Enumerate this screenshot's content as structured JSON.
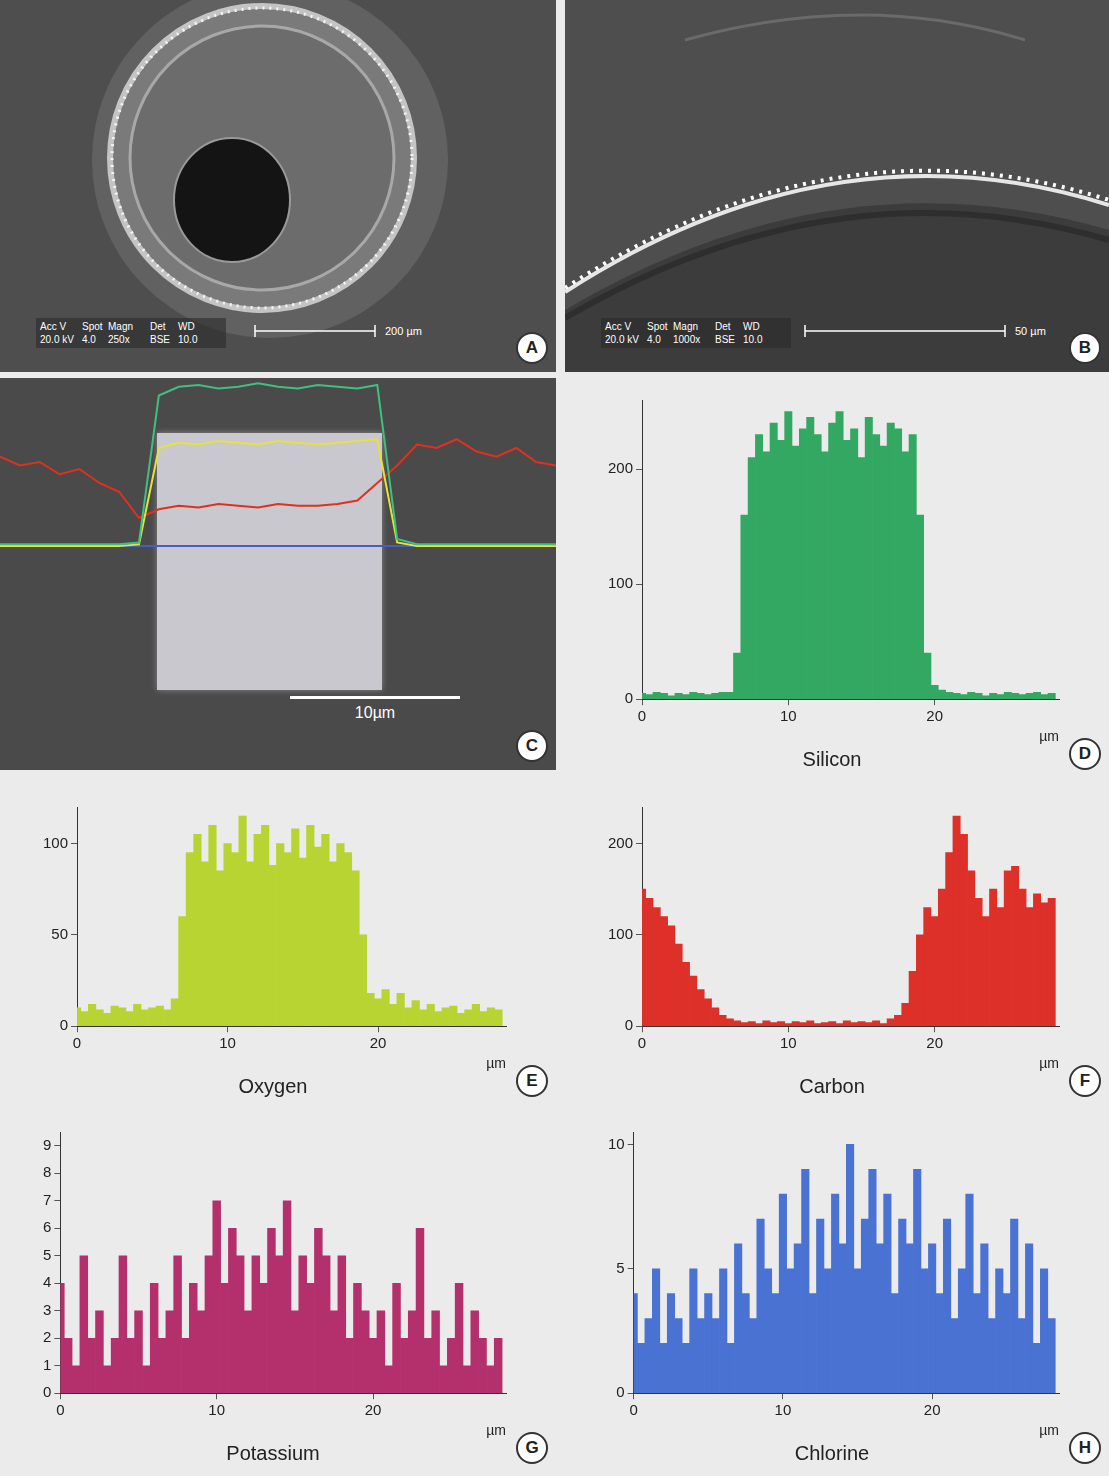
{
  "images": [
    {
      "panel": "A",
      "info": [
        {
          "label": "Acc V",
          "value": "20.0 kV"
        },
        {
          "label": "Spot",
          "value": "4.0"
        },
        {
          "label": "Magn",
          "value": "250x"
        },
        {
          "label": "Det",
          "value": "BSE"
        },
        {
          "label": "WD",
          "value": "10.0"
        }
      ],
      "scale_bar": "200 µm"
    },
    {
      "panel": "B",
      "info": [
        {
          "label": "Acc V",
          "value": "20.0 kV"
        },
        {
          "label": "Spot",
          "value": "4.0"
        },
        {
          "label": "Magn",
          "value": "1000x"
        },
        {
          "label": "Det",
          "value": "BSE"
        },
        {
          "label": "WD",
          "value": "10.0"
        }
      ],
      "scale_bar": "50 µm"
    }
  ],
  "chart_data": [
    {
      "panel": "C",
      "type": "line",
      "tick_labels": false,
      "grid": false,
      "scale_bar": "10µm",
      "x": [
        0,
        1,
        2,
        3,
        4,
        5,
        6,
        7,
        8,
        9,
        10,
        11,
        12,
        13,
        14,
        15,
        16,
        17,
        18,
        19,
        20,
        21,
        22,
        23,
        24,
        25,
        26,
        27,
        28
      ],
      "xlim": [
        0,
        28
      ],
      "ylim": [
        0,
        100
      ],
      "series": [
        {
          "color": "#3fbf80",
          "values": [
            5,
            5,
            5,
            5,
            5,
            5,
            5,
            6,
            90,
            95,
            96,
            94,
            95,
            97,
            95,
            94,
            96,
            95,
            94,
            96,
            8,
            5,
            5,
            5,
            5,
            5,
            5,
            5,
            5
          ]
        },
        {
          "color": "#e6e040",
          "values": [
            4,
            4,
            4,
            4,
            4,
            4,
            4,
            5,
            60,
            63,
            62,
            64,
            63,
            62,
            64,
            63,
            62,
            63,
            64,
            65,
            6,
            4,
            4,
            4,
            4,
            4,
            4,
            4,
            4
          ]
        },
        {
          "color": "#e03020",
          "values": [
            55,
            50,
            52,
            45,
            48,
            40,
            35,
            20,
            25,
            27,
            26,
            28,
            27,
            26,
            28,
            27,
            27,
            28,
            30,
            40,
            50,
            62,
            60,
            65,
            58,
            55,
            60,
            52,
            50
          ]
        },
        {
          "color": "#4060c8",
          "values": [
            4,
            4,
            4,
            4,
            4,
            4,
            4,
            4,
            4,
            4,
            4,
            4,
            4,
            4,
            4,
            4,
            4,
            4,
            4,
            4,
            4,
            4,
            4,
            4,
            4,
            4,
            4,
            4,
            4
          ]
        }
      ]
    },
    {
      "panel": "D",
      "type": "bar",
      "title": "Silicon",
      "x_label": "µm",
      "color": "#33a862",
      "grid": false,
      "x": [
        0,
        0.5,
        1,
        1.5,
        2,
        2.5,
        3,
        3.5,
        4,
        4.5,
        5,
        5.5,
        6,
        6.5,
        7,
        7.5,
        8,
        8.5,
        9,
        9.5,
        10,
        10.5,
        11,
        11.5,
        12,
        12.5,
        13,
        13.5,
        14,
        14.5,
        15,
        15.5,
        16,
        16.5,
        17,
        17.5,
        18,
        18.5,
        19,
        19.5,
        20,
        20.5,
        21,
        21.5,
        22,
        22.5,
        23,
        23.5,
        24,
        24.5,
        25,
        25.5,
        26,
        26.5,
        27,
        27.5,
        28
      ],
      "values": [
        5,
        4,
        6,
        5,
        3,
        5,
        4,
        6,
        5,
        4,
        5,
        6,
        6,
        40,
        160,
        210,
        230,
        215,
        240,
        225,
        250,
        220,
        235,
        245,
        230,
        215,
        240,
        250,
        225,
        235,
        210,
        245,
        230,
        220,
        240,
        235,
        215,
        230,
        160,
        40,
        12,
        8,
        6,
        5,
        4,
        6,
        5,
        3,
        5,
        4,
        6,
        5,
        4,
        5,
        6,
        4,
        5
      ],
      "xlim": [
        0,
        28.5
      ],
      "xticks": [
        0,
        10,
        20
      ],
      "ylim": [
        0,
        260
      ],
      "yticks": [
        0,
        100,
        200
      ]
    },
    {
      "panel": "E",
      "type": "bar",
      "title": "Oxygen",
      "x_label": "µm",
      "color": "#b8d433",
      "grid": false,
      "x": [
        0,
        0.5,
        1,
        1.5,
        2,
        2.5,
        3,
        3.5,
        4,
        4.5,
        5,
        5.5,
        6,
        6.5,
        7,
        7.5,
        8,
        8.5,
        9,
        9.5,
        10,
        10.5,
        11,
        11.5,
        12,
        12.5,
        13,
        13.5,
        14,
        14.5,
        15,
        15.5,
        16,
        16.5,
        17,
        17.5,
        18,
        18.5,
        19,
        19.5,
        20,
        20.5,
        21,
        21.5,
        22,
        22.5,
        23,
        23.5,
        24,
        24.5,
        25,
        25.5,
        26,
        26.5,
        27,
        27.5,
        28
      ],
      "values": [
        10,
        8,
        12,
        9,
        7,
        11,
        10,
        8,
        12,
        9,
        10,
        11,
        9,
        15,
        60,
        95,
        105,
        90,
        110,
        85,
        100,
        95,
        115,
        90,
        105,
        110,
        88,
        100,
        95,
        108,
        92,
        110,
        98,
        105,
        90,
        100,
        95,
        85,
        50,
        18,
        15,
        20,
        12,
        18,
        10,
        14,
        9,
        12,
        8,
        10,
        11,
        7,
        9,
        12,
        8,
        10,
        9
      ],
      "xlim": [
        0,
        28.5
      ],
      "xticks": [
        0,
        10,
        20
      ],
      "ylim": [
        0,
        120
      ],
      "yticks": [
        0,
        50,
        100
      ]
    },
    {
      "panel": "F",
      "type": "bar",
      "title": "Carbon",
      "x_label": "µm",
      "color": "#dc3028",
      "grid": false,
      "x": [
        0,
        0.5,
        1,
        1.5,
        2,
        2.5,
        3,
        3.5,
        4,
        4.5,
        5,
        5.5,
        6,
        6.5,
        7,
        7.5,
        8,
        8.5,
        9,
        9.5,
        10,
        10.5,
        11,
        11.5,
        12,
        12.5,
        13,
        13.5,
        14,
        14.5,
        15,
        15.5,
        16,
        16.5,
        17,
        17.5,
        18,
        18.5,
        19,
        19.5,
        20,
        20.5,
        21,
        21.5,
        22,
        22.5,
        23,
        23.5,
        24,
        24.5,
        25,
        25.5,
        26,
        26.5,
        27,
        27.5,
        28
      ],
      "values": [
        150,
        140,
        130,
        120,
        110,
        90,
        70,
        55,
        40,
        30,
        20,
        12,
        8,
        6,
        4,
        5,
        3,
        6,
        4,
        5,
        3,
        5,
        4,
        6,
        3,
        4,
        5,
        3,
        6,
        4,
        5,
        4,
        6,
        3,
        8,
        12,
        25,
        60,
        100,
        130,
        120,
        150,
        190,
        230,
        210,
        170,
        140,
        120,
        150,
        130,
        170,
        175,
        150,
        130,
        145,
        135,
        140
      ],
      "xlim": [
        0,
        28.5
      ],
      "xticks": [
        0,
        10,
        20
      ],
      "ylim": [
        0,
        240
      ],
      "yticks": [
        0,
        100,
        200
      ]
    },
    {
      "panel": "G",
      "type": "bar",
      "title": "Potassium",
      "x_label": "µm",
      "color": "#b3306c",
      "grid": false,
      "x": [
        0,
        0.5,
        1,
        1.5,
        2,
        2.5,
        3,
        3.5,
        4,
        4.5,
        5,
        5.5,
        6,
        6.5,
        7,
        7.5,
        8,
        8.5,
        9,
        9.5,
        10,
        10.5,
        11,
        11.5,
        12,
        12.5,
        13,
        13.5,
        14,
        14.5,
        15,
        15.5,
        16,
        16.5,
        17,
        17.5,
        18,
        18.5,
        19,
        19.5,
        20,
        20.5,
        21,
        21.5,
        22,
        22.5,
        23,
        23.5,
        24,
        24.5,
        25,
        25.5,
        26,
        26.5,
        27,
        27.5,
        28
      ],
      "values": [
        4,
        2,
        1,
        5,
        2,
        3,
        1,
        2,
        5,
        2,
        3,
        1,
        4,
        2,
        3,
        5,
        2,
        4,
        3,
        5,
        7,
        4,
        6,
        5,
        3,
        5,
        4,
        6,
        5,
        7,
        3,
        5,
        4,
        6,
        5,
        3,
        5,
        2,
        4,
        3,
        2,
        3,
        1,
        4,
        2,
        3,
        6,
        2,
        3,
        1,
        2,
        4,
        1,
        3,
        2,
        1,
        2
      ],
      "xlim": [
        0,
        28.5
      ],
      "xticks": [
        0,
        10,
        20
      ],
      "ylim": [
        0,
        9.5
      ],
      "yticks": [
        0,
        1,
        2,
        3,
        4,
        5,
        6,
        7,
        8,
        9
      ]
    },
    {
      "panel": "H",
      "type": "bar",
      "title": "Chlorine",
      "x_label": "µm",
      "color": "#4a72d2",
      "grid": false,
      "x": [
        0,
        0.5,
        1,
        1.5,
        2,
        2.5,
        3,
        3.5,
        4,
        4.5,
        5,
        5.5,
        6,
        6.5,
        7,
        7.5,
        8,
        8.5,
        9,
        9.5,
        10,
        10.5,
        11,
        11.5,
        12,
        12.5,
        13,
        13.5,
        14,
        14.5,
        15,
        15.5,
        16,
        16.5,
        17,
        17.5,
        18,
        18.5,
        19,
        19.5,
        20,
        20.5,
        21,
        21.5,
        22,
        22.5,
        23,
        23.5,
        24,
        24.5,
        25,
        25.5,
        26,
        26.5,
        27,
        27.5,
        28
      ],
      "values": [
        4,
        2,
        3,
        5,
        2,
        4,
        3,
        2,
        5,
        3,
        4,
        3,
        5,
        2,
        6,
        4,
        3,
        7,
        5,
        4,
        8,
        5,
        6,
        9,
        4,
        7,
        5,
        8,
        6,
        10,
        5,
        7,
        9,
        6,
        8,
        4,
        7,
        6,
        9,
        5,
        6,
        4,
        7,
        3,
        5,
        8,
        4,
        6,
        3,
        5,
        4,
        7,
        3,
        6,
        2,
        5,
        3
      ],
      "xlim": [
        0,
        28.5
      ],
      "xticks": [
        0,
        10,
        20
      ],
      "ylim": [
        0,
        10.5
      ],
      "yticks": [
        0,
        5,
        10
      ]
    }
  ]
}
